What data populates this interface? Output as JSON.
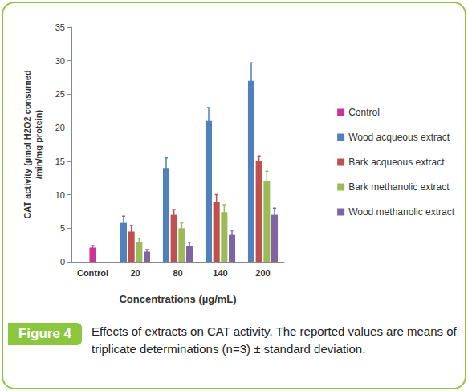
{
  "chart_data": {
    "type": "bar",
    "x_label": "Concentrations (µg/mL)",
    "y_label": "CAT activity (µmol H2O2 consumed\n/min/mg protein)",
    "categories": [
      "Control",
      "20",
      "80",
      "140",
      "200"
    ],
    "series": [
      {
        "name": "Control",
        "color": "#cc3399",
        "values": [
          2.1,
          null,
          null,
          null,
          null
        ],
        "errors": [
          0.3,
          null,
          null,
          null,
          null
        ]
      },
      {
        "name": "Wood acqueous extract",
        "color": "#4f81bd",
        "values": [
          null,
          5.8,
          14,
          21,
          27
        ],
        "errors": [
          null,
          1,
          1.5,
          2,
          2.7
        ]
      },
      {
        "name": "Bark acqueous extract",
        "color": "#c0504d",
        "values": [
          null,
          4.5,
          7,
          9,
          15
        ],
        "errors": [
          null,
          0.9,
          0.8,
          1,
          0.8
        ]
      },
      {
        "name": "Bark methanolic extract",
        "color": "#9bbb59",
        "values": [
          null,
          3,
          5,
          7.4,
          12
        ],
        "errors": [
          null,
          0.5,
          0.8,
          1.1,
          1.5
        ]
      },
      {
        "name": "Wood methanolic extract",
        "color": "#8064a2",
        "values": [
          null,
          1.5,
          2.4,
          4,
          7
        ],
        "errors": [
          null,
          0.3,
          0.5,
          0.7,
          1
        ]
      }
    ],
    "ylim": [
      0,
      35
    ],
    "yticks": [
      0,
      5,
      10,
      15,
      20,
      25,
      30,
      35
    ],
    "grid": false,
    "legend": "right",
    "caption": {
      "label": "Figure 4",
      "text": "Effects of extracts on CAT activity. The reported values are means of triplicate determinations (n=3) ± standard deviation."
    }
  }
}
